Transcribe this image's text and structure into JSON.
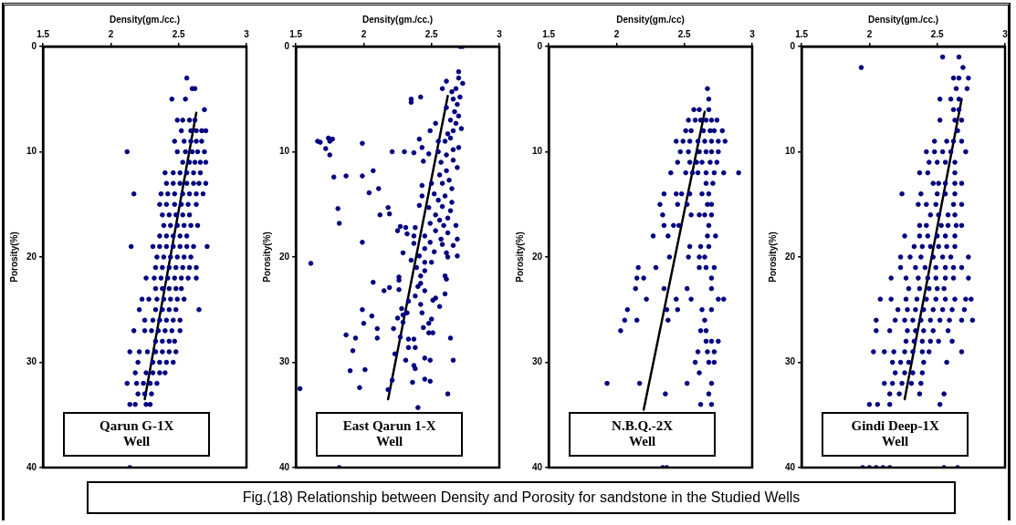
{
  "chart_data": [
    {
      "type": "scatter",
      "xlabel": "Density(gm./cc.)",
      "ylabel": "Porosity(%)",
      "xlim": [
        1.5,
        3
      ],
      "xticks": [
        1.5,
        2,
        2.5,
        3
      ],
      "ylim": [
        40,
        0
      ],
      "yticks": [
        0,
        10,
        20,
        30,
        40
      ],
      "marker": "circle",
      "annotations": [
        "Qarun G-1X\nWell"
      ],
      "series": [
        {
          "type": "scatter",
          "color": "#000080",
          "x": [
            2.56,
            2.6,
            2.62,
            2.45,
            2.55,
            2.69,
            2.49,
            2.53,
            2.58,
            2.62,
            2.52,
            2.59,
            2.63,
            2.67,
            2.7,
            2.47,
            2.54,
            2.59,
            2.63,
            2.67,
            2.12,
            2.49,
            2.55,
            2.6,
            2.64,
            2.69,
            2.53,
            2.58,
            2.62,
            2.66,
            2.7,
            2.4,
            2.46,
            2.51,
            2.56,
            2.61,
            2.66,
            2.41,
            2.46,
            2.51,
            2.56,
            2.61,
            2.65,
            2.7,
            2.17,
            2.37,
            2.42,
            2.47,
            2.53,
            2.58,
            2.63,
            2.68,
            2.36,
            2.41,
            2.47,
            2.52,
            2.57,
            2.63,
            2.38,
            2.43,
            2.48,
            2.53,
            2.58,
            2.39,
            2.44,
            2.49,
            2.54,
            2.59,
            2.64,
            2.36,
            2.41,
            2.46,
            2.51,
            2.56,
            2.15,
            2.31,
            2.36,
            2.41,
            2.46,
            2.51,
            2.56,
            2.61,
            2.71,
            2.34,
            2.39,
            2.44,
            2.49,
            2.54,
            2.59,
            2.33,
            2.38,
            2.43,
            2.48,
            2.53,
            2.58,
            2.63,
            2.26,
            2.32,
            2.37,
            2.42,
            2.47,
            2.52,
            2.57,
            2.63,
            2.33,
            2.38,
            2.43,
            2.48,
            2.52,
            2.23,
            2.28,
            2.34,
            2.39,
            2.44,
            2.49,
            2.54,
            2.21,
            2.33,
            2.38,
            2.43,
            2.48,
            2.65,
            2.25,
            2.31,
            2.36,
            2.41,
            2.46,
            2.51,
            2.17,
            2.25,
            2.3,
            2.35,
            2.4,
            2.45,
            2.51,
            2.33,
            2.38,
            2.43,
            2.47,
            2.14,
            2.21,
            2.27,
            2.33,
            2.38,
            2.43,
            2.48,
            2.2,
            2.31,
            2.36,
            2.41,
            2.46,
            2.18,
            2.26,
            2.31,
            2.36,
            2.4,
            2.12,
            2.19,
            2.24,
            2.29,
            2.34,
            2.2,
            2.25,
            2.3,
            2.14,
            2.18,
            2.26,
            2.29,
            2.14
          ],
          "values": [
            3,
            4,
            4,
            5,
            5,
            6,
            7,
            7,
            7,
            7,
            8,
            8,
            8,
            8,
            8,
            9,
            9,
            9,
            9,
            9,
            10,
            10,
            10,
            10,
            10,
            10,
            11,
            11,
            11,
            11,
            11,
            12,
            12,
            12,
            12,
            12,
            12,
            13,
            13,
            13,
            13,
            13,
            13,
            13,
            14,
            14,
            14,
            14,
            14,
            14,
            14,
            14,
            15,
            15,
            15,
            15,
            15,
            15,
            16,
            16,
            16,
            16,
            16,
            17,
            17,
            17,
            17,
            17,
            17,
            18,
            18,
            18,
            18,
            18,
            19,
            19,
            19,
            19,
            19,
            19,
            19,
            19,
            19,
            20,
            20,
            20,
            20,
            20,
            20,
            21,
            21,
            21,
            21,
            21,
            21,
            21,
            22,
            22,
            22,
            22,
            22,
            22,
            22,
            22,
            23,
            23,
            23,
            23,
            23,
            24,
            24,
            24,
            24,
            24,
            24,
            24,
            25,
            25,
            25,
            25,
            25,
            25,
            26,
            26,
            26,
            26,
            26,
            26,
            27,
            27,
            27,
            27,
            27,
            27,
            27,
            28,
            28,
            28,
            28,
            29,
            29,
            29,
            29,
            29,
            29,
            29,
            30,
            30,
            30,
            30,
            30,
            31,
            31,
            31,
            31,
            31,
            32,
            32,
            32,
            32,
            32,
            33,
            33,
            33,
            34,
            34,
            34,
            34,
            40
          ]
        },
        {
          "type": "line",
          "color": "#000000",
          "marker": "none",
          "x": [
            2.63,
            2.25
          ],
          "values": [
            6.3,
            33.5
          ]
        }
      ]
    },
    {
      "type": "scatter",
      "xlabel": "Density(gm./cc.)",
      "ylabel": "Porosity(%)",
      "xlim": [
        1.5,
        3
      ],
      "xticks": [
        1.5,
        2,
        2.5,
        3
      ],
      "ylim": [
        40,
        0
      ],
      "yticks": [
        0,
        10,
        20,
        30,
        40
      ],
      "marker": "circle",
      "annotations": [
        "East Qarun 1-X\nWell"
      ],
      "series": [
        {
          "type": "scatter",
          "color": "#000080",
          "x": [
            2.71,
            2.73,
            2.7,
            2.7,
            2.61,
            2.73,
            2.68,
            2.65,
            2.58,
            2.71,
            2.66,
            2.42,
            2.35,
            2.35,
            2.61,
            2.69,
            2.67,
            2.7,
            2.64,
            2.68,
            2.53,
            2.72,
            2.66,
            2.62,
            2.49,
            2.64,
            2.41,
            2.6,
            2.55,
            2.7,
            2.43,
            2.66,
            2.55,
            2.61,
            2.48,
            2.37,
            2.3,
            2.21,
            2.66,
            2.57,
            2.44,
            2.69,
            2.61,
            2.56,
            2.63,
            2.58,
            2.5,
            2.43,
            2.65,
            2.52,
            2.6,
            2.43,
            2.55,
            2.65,
            2.58,
            2.48,
            2.41,
            2.64,
            2.53,
            2.62,
            2.56,
            2.49,
            2.59,
            2.68,
            2.38,
            2.31,
            2.27,
            2.25,
            2.53,
            2.62,
            2.45,
            2.37,
            2.32,
            2.57,
            2.69,
            2.49,
            2.58,
            2.66,
            2.37,
            2.45,
            2.52,
            2.61,
            2.29,
            2.41,
            2.62,
            2.69,
            2.35,
            2.45,
            2.5,
            2.39,
            2.45,
            2.42,
            2.26,
            2.6,
            2.61,
            2.42,
            2.26,
            2.4,
            2.19,
            2.15,
            2.26,
            2.45,
            2.6,
            2.38,
            2.51,
            2.53,
            2.33,
            2.42,
            2.56,
            2.28,
            2.43,
            2.32,
            2.29,
            2.5,
            2.25,
            2.29,
            2.48,
            2.44,
            2.22,
            2.48,
            2.51,
            2.27,
            2.33,
            2.37,
            2.38,
            2.33,
            2.23,
            2.31,
            2.45,
            2.49,
            2.64,
            2.66,
            2.37,
            2.38,
            2.21,
            2.36,
            2.45,
            2.49,
            1.66,
            1.68,
            1.72,
            1.74,
            1.75,
            1.77,
            1.75,
            1.78,
            1.87,
            1.99,
            2.07,
            1.99,
            2.04,
            2.11,
            1.81,
            1.82,
            2.12,
            2.19,
            2.18,
            1.99,
            1.61,
            2.07,
            1.99,
            2.06,
            2.0,
            2.1,
            2.1,
            1.87,
            1.94,
            1.92,
            1.9,
            2.01,
            1.53,
            1.82,
            2.62,
            2.4,
            1.97,
            2.18
          ],
          "values": [
            0,
            0,
            2.4,
            3,
            3.3,
            3.5,
            4,
            4.3,
            4,
            4.8,
            5,
            4.8,
            5,
            5.3,
            5.8,
            5.5,
            6.2,
            6.6,
            7,
            7.3,
            7.3,
            7.8,
            8,
            8.3,
            8,
            8.7,
            8.8,
            9,
            9,
            9.6,
            9.6,
            9.8,
            10,
            10.3,
            10.2,
            10.1,
            10,
            10,
            10.8,
            11,
            10.9,
            11.5,
            11.8,
            12.2,
            12.7,
            13,
            13,
            13.2,
            13.5,
            14,
            14.2,
            14.2,
            14.6,
            14.8,
            15.2,
            15.3,
            15.1,
            15.6,
            16,
            16.3,
            16.5,
            16.8,
            17,
            17,
            17.2,
            17.2,
            17.1,
            17.5,
            17.5,
            17.7,
            18,
            18,
            17.8,
            18.3,
            18.3,
            18.6,
            18.8,
            18.9,
            18.7,
            19.2,
            19.5,
            19.6,
            19.6,
            19.9,
            20,
            19.9,
            20.3,
            20.5,
            20.5,
            21,
            21.3,
            21.8,
            21.9,
            21.8,
            22.1,
            22.5,
            22.2,
            22.8,
            22.9,
            23.2,
            23.1,
            23.2,
            23.5,
            23.7,
            24.1,
            23.9,
            24.2,
            24.5,
            24.7,
            24.9,
            25.3,
            25.3,
            25.5,
            25.9,
            25.8,
            26.2,
            26.3,
            26.7,
            26.8,
            27.2,
            27.2,
            27.6,
            27.8,
            27.8,
            28.6,
            28.6,
            29.2,
            29.8,
            29.6,
            29.8,
            27.7,
            29.8,
            30.3,
            30.6,
            31.7,
            31.9,
            31.6,
            31.8,
            9,
            9.1,
            9.7,
            8.7,
            9,
            8.8,
            10.3,
            12.4,
            12.3,
            12.3,
            11.8,
            9.2,
            13.9,
            13.5,
            15.4,
            16.8,
            16,
            15.9,
            15.3,
            18.6,
            20.6,
            22.4,
            25,
            25.6,
            26.3,
            26.8,
            27.7,
            27.4,
            27.7,
            28.9,
            30.8,
            30.7,
            32.5,
            40,
            33,
            34.3,
            32.4,
            32.6
          ]
        },
        {
          "type": "line",
          "color": "#000000",
          "marker": "none",
          "x": [
            2.62,
            2.18
          ],
          "values": [
            4.7,
            33.5
          ]
        }
      ]
    },
    {
      "type": "scatter",
      "xlabel": "Density(gm./cc)",
      "ylabel": "Porosity(%)",
      "xlim": [
        1.5,
        3
      ],
      "xticks": [
        1.5,
        2,
        2.5,
        3
      ],
      "ylim": [
        40,
        0
      ],
      "yticks": [
        0,
        10,
        20,
        30,
        40
      ],
      "marker": "circle",
      "annotations": [
        "N.B.Q.-2X\nWell"
      ],
      "series": [
        {
          "type": "scatter",
          "color": "#000080",
          "x": [
            2.67,
            2.68,
            2.57,
            2.61,
            2.68,
            2.53,
            2.58,
            2.62,
            2.66,
            2.7,
            2.74,
            2.51,
            2.55,
            2.64,
            2.69,
            2.72,
            2.78,
            2.44,
            2.49,
            2.54,
            2.6,
            2.65,
            2.7,
            2.75,
            2.8,
            2.47,
            2.53,
            2.61,
            2.66,
            2.7,
            2.75,
            2.45,
            2.54,
            2.59,
            2.63,
            2.69,
            2.74,
            2.4,
            2.51,
            2.56,
            2.6,
            2.66,
            2.72,
            2.79,
            2.9,
            2.66,
            2.71,
            2.35,
            2.44,
            2.48,
            2.54,
            2.63,
            2.68,
            2.32,
            2.45,
            2.52,
            2.67,
            2.7,
            2.34,
            2.55,
            2.61,
            2.65,
            2.7,
            2.35,
            2.42,
            2.46,
            2.68,
            2.27,
            2.38,
            2.67,
            2.73,
            2.54,
            2.62,
            2.68,
            2.39,
            2.53,
            2.61,
            2.65,
            2.16,
            2.29,
            2.61,
            2.66,
            2.72,
            2.15,
            2.2,
            2.7,
            2.14,
            2.35,
            2.52,
            2.7,
            2.22,
            2.44,
            2.55,
            2.75,
            2.79,
            2.08,
            2.37,
            2.45,
            2.63,
            2.7,
            2.06,
            2.15,
            2.38,
            2.65,
            2.03,
            2.62,
            2.66,
            2.66,
            2.7,
            2.75,
            2.6,
            2.67,
            2.72,
            2.58,
            2.68,
            2.72,
            2.61,
            1.93,
            2.17,
            2.52,
            2.7,
            2.36,
            2.68,
            2.62,
            2.7,
            2.34,
            2.37
          ],
          "values": [
            4,
            5,
            6,
            6,
            6,
            7,
            7,
            7,
            7,
            7,
            7,
            8,
            8,
            8,
            8,
            8,
            8,
            9,
            9,
            9,
            9,
            9,
            9,
            9,
            9,
            10,
            10,
            10,
            10,
            10,
            10,
            11,
            11,
            11,
            11,
            11,
            11,
            12,
            12,
            12,
            12,
            12,
            12,
            12,
            12,
            13,
            13,
            14,
            14,
            14,
            14,
            14,
            14,
            15,
            15,
            15,
            15,
            15,
            16,
            16,
            16,
            16,
            16,
            17,
            17,
            17,
            17,
            18,
            18,
            18,
            18,
            19,
            19,
            19,
            20,
            20,
            20,
            20,
            21,
            21,
            21,
            21,
            21,
            22,
            22,
            22,
            23,
            23,
            23,
            23,
            24,
            24,
            24,
            24,
            24,
            25,
            25,
            25,
            25,
            25,
            26,
            26,
            26,
            26,
            27,
            27,
            27,
            28,
            28,
            28,
            29,
            29,
            29,
            30,
            30,
            30,
            31,
            32,
            32,
            32,
            32,
            33,
            33,
            34,
            34,
            40,
            40
          ]
        },
        {
          "type": "line",
          "color": "#000000",
          "marker": "none",
          "x": [
            2.65,
            2.2
          ],
          "values": [
            6.2,
            34.5
          ]
        }
      ]
    },
    {
      "type": "scatter",
      "xlabel": "Density(gm./cc.)",
      "ylabel": "Porosity(%)",
      "xlim": [
        1.5,
        3
      ],
      "xticks": [
        1.5,
        2,
        2.5,
        3
      ],
      "ylim": [
        40,
        0
      ],
      "yticks": [
        0,
        10,
        20,
        30,
        40
      ],
      "marker": "circle",
      "annotations": [
        "Gindi Deep-1X\nWell"
      ],
      "series": [
        {
          "type": "scatter",
          "color": "#000080",
          "x": [
            2.54,
            2.66,
            1.94,
            2.69,
            2.62,
            2.66,
            2.73,
            2.64,
            2.72,
            2.52,
            2.6,
            2.66,
            2.62,
            2.66,
            2.52,
            2.63,
            2.68,
            2.65,
            2.48,
            2.57,
            2.62,
            2.68,
            2.42,
            2.48,
            2.54,
            2.6,
            2.71,
            2.44,
            2.5,
            2.56,
            2.63,
            2.37,
            2.43,
            2.63,
            2.47,
            2.51,
            2.56,
            2.63,
            2.68,
            2.24,
            2.38,
            2.5,
            2.56,
            2.63,
            2.36,
            2.42,
            2.49,
            2.62,
            2.68,
            2.45,
            2.51,
            2.58,
            2.63,
            2.37,
            2.42,
            2.53,
            2.58,
            2.64,
            2.68,
            2.26,
            2.37,
            2.43,
            2.5,
            2.56,
            2.63,
            2.33,
            2.39,
            2.45,
            2.51,
            2.57,
            2.63,
            2.23,
            2.3,
            2.38,
            2.47,
            2.54,
            2.6,
            2.73,
            2.23,
            2.34,
            2.41,
            2.49,
            2.56,
            2.62,
            2.68,
            2.16,
            2.27,
            2.36,
            2.43,
            2.49,
            2.56,
            2.62,
            2.73,
            2.29,
            2.37,
            2.44,
            2.5,
            2.55,
            2.08,
            2.16,
            2.27,
            2.35,
            2.42,
            2.49,
            2.56,
            2.63,
            2.71,
            2.75,
            2.21,
            2.28,
            2.34,
            2.4,
            2.47,
            2.54,
            2.61,
            2.7,
            2.05,
            2.19,
            2.26,
            2.32,
            2.38,
            2.45,
            2.52,
            2.59,
            2.68,
            2.76,
            2.05,
            2.15,
            2.28,
            2.34,
            2.4,
            2.47,
            2.58,
            2.27,
            2.33,
            2.39,
            2.45,
            2.51,
            2.61,
            2.03,
            2.11,
            2.18,
            2.26,
            2.32,
            2.39,
            2.44,
            2.68,
            2.17,
            2.23,
            2.29,
            2.4,
            2.57,
            2.19,
            2.26,
            2.32,
            2.39,
            2.11,
            2.17,
            2.24,
            2.31,
            2.38,
            2.15,
            2.22,
            2.37,
            2.55,
            2.0,
            2.06,
            2.15,
            2.52,
            1.95,
            2.0,
            2.05,
            2.1,
            2.15,
            2.55,
            2.65
          ],
          "values": [
            1,
            1,
            2,
            2,
            3,
            3,
            3,
            4,
            4,
            5,
            5,
            5,
            6,
            6,
            7,
            7,
            7,
            8,
            9,
            9,
            9,
            9,
            10,
            10,
            10,
            10,
            10,
            11,
            11,
            11,
            11,
            12,
            12,
            12,
            13,
            13,
            13,
            13,
            13,
            14,
            14,
            14,
            14,
            14,
            15,
            15,
            15,
            15,
            15,
            16,
            16,
            16,
            16,
            17,
            17,
            17,
            17,
            17,
            17,
            18,
            18,
            18,
            18,
            18,
            18,
            19,
            19,
            19,
            19,
            19,
            19,
            20,
            20,
            20,
            20,
            20,
            20,
            20,
            21,
            21,
            21,
            21,
            21,
            21,
            21,
            22,
            22,
            22,
            22,
            22,
            22,
            22,
            22,
            23,
            23,
            23,
            23,
            23,
            24,
            24,
            24,
            24,
            24,
            24,
            24,
            24,
            24,
            24,
            25,
            25,
            25,
            25,
            25,
            25,
            25,
            25,
            26,
            26,
            26,
            26,
            26,
            26,
            26,
            26,
            26,
            26,
            27,
            27,
            27,
            27,
            27,
            27,
            27,
            28,
            28,
            28,
            28,
            28,
            28,
            29,
            29,
            29,
            29,
            29,
            29,
            29,
            29,
            30,
            30,
            30,
            30,
            30,
            31,
            31,
            31,
            31,
            32,
            32,
            32,
            32,
            32,
            33,
            33,
            33,
            33,
            34,
            34,
            34,
            34,
            40,
            40,
            40,
            40,
            40,
            40,
            40
          ]
        },
        {
          "type": "line",
          "color": "#000000",
          "marker": "none",
          "x": [
            2.68,
            2.26
          ],
          "values": [
            5,
            33.5
          ]
        }
      ]
    },
    {
      "type": "other",
      "title": "Fig.(18) Relationship between Density and Porosity for sandstone in the Studied Wells"
    }
  ]
}
